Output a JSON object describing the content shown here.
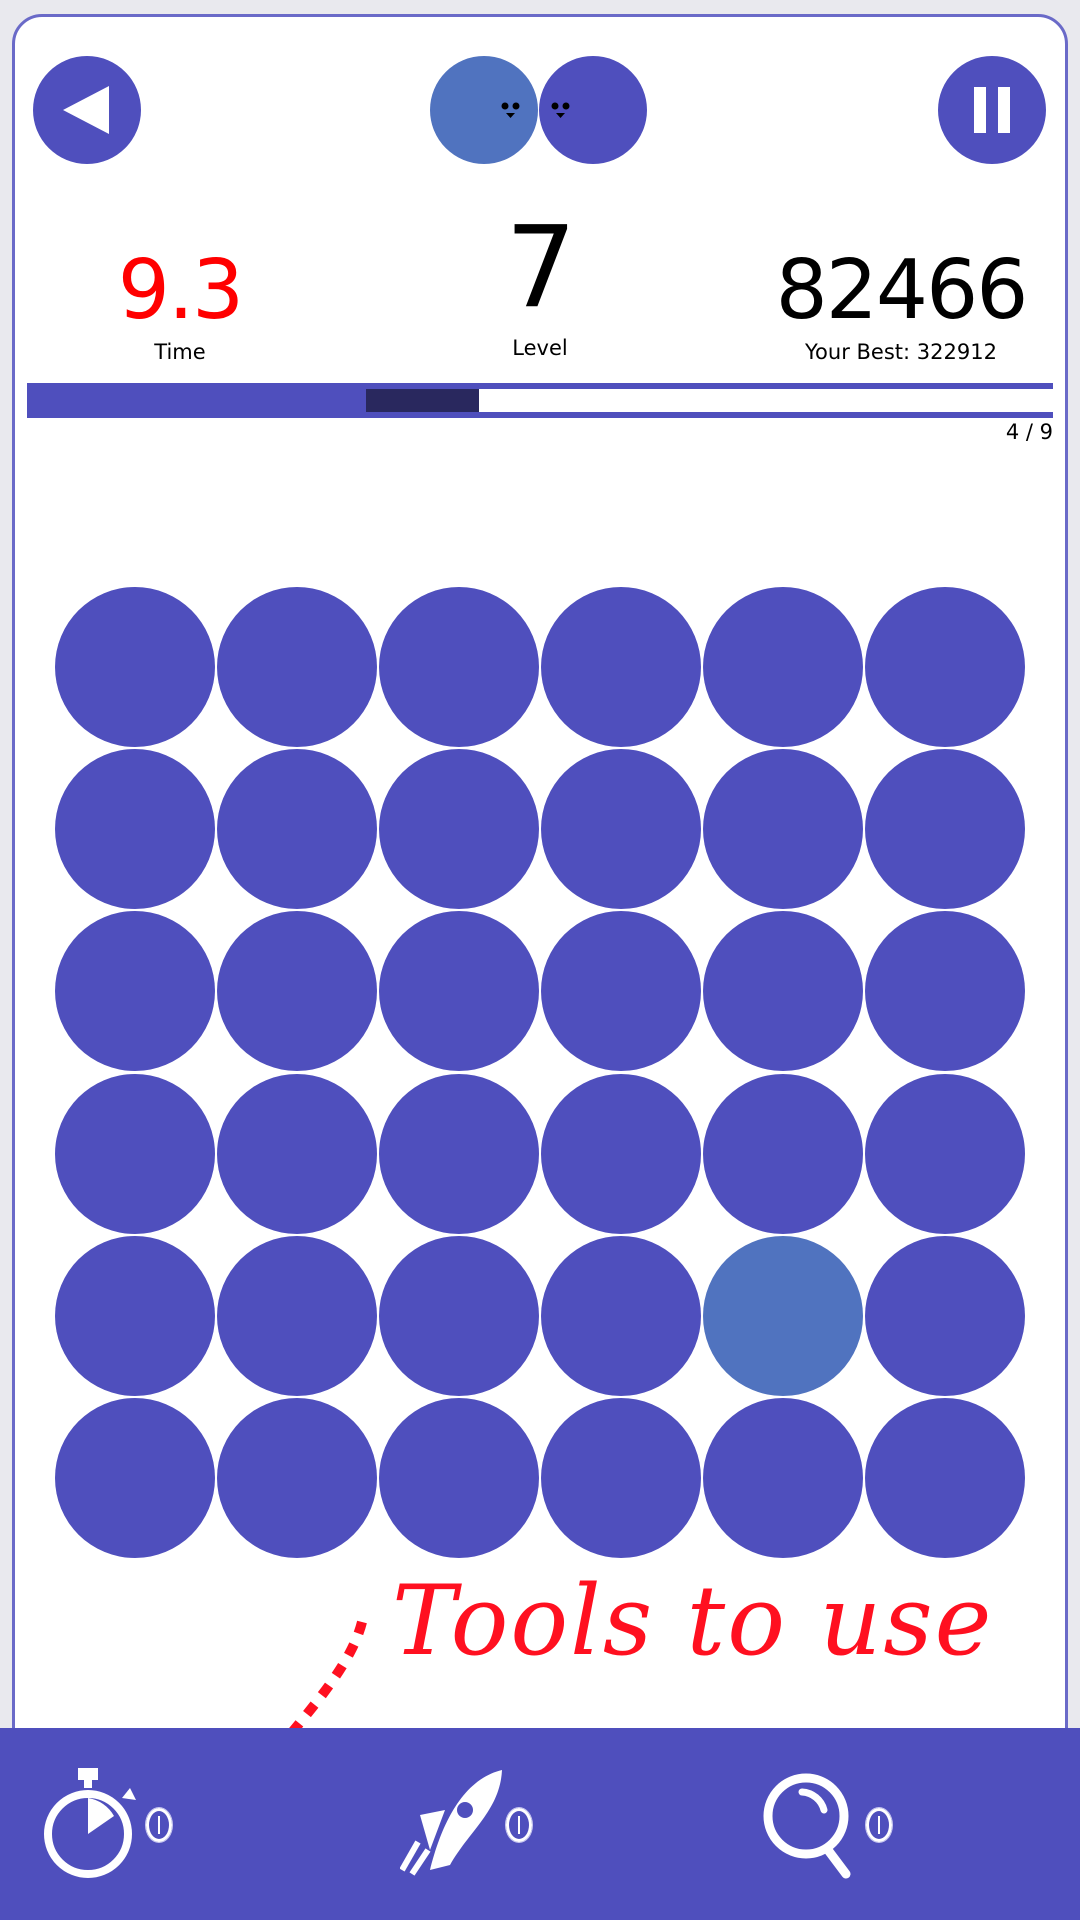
{
  "colors": {
    "accent": "#4f4fbd",
    "highlight": "#5073bf",
    "progress_dark": "#29285e",
    "time": "#ff0000",
    "annotation": "#ff1020"
  },
  "header": {
    "back_icon": "back-triangle-icon",
    "pause_icon": "pause-icon",
    "mascot": "two-smiling-circles"
  },
  "stats": {
    "time_value": "9.3",
    "time_label": "Time",
    "level_value": "7",
    "level_label": "Level",
    "score_value": "82466",
    "best_label": "Your Best: 322912"
  },
  "progress": {
    "text": "4 / 9",
    "current": 4,
    "total": 9
  },
  "grid": {
    "rows": 6,
    "cols": 6,
    "highlighted": {
      "row": 5,
      "col": 5
    }
  },
  "annotation": {
    "text": "Tools to use"
  },
  "tools": [
    {
      "name": "stopwatch",
      "icon": "stopwatch-icon"
    },
    {
      "name": "rocket",
      "icon": "rocket-icon"
    },
    {
      "name": "magnifier",
      "icon": "magnifier-icon"
    }
  ]
}
